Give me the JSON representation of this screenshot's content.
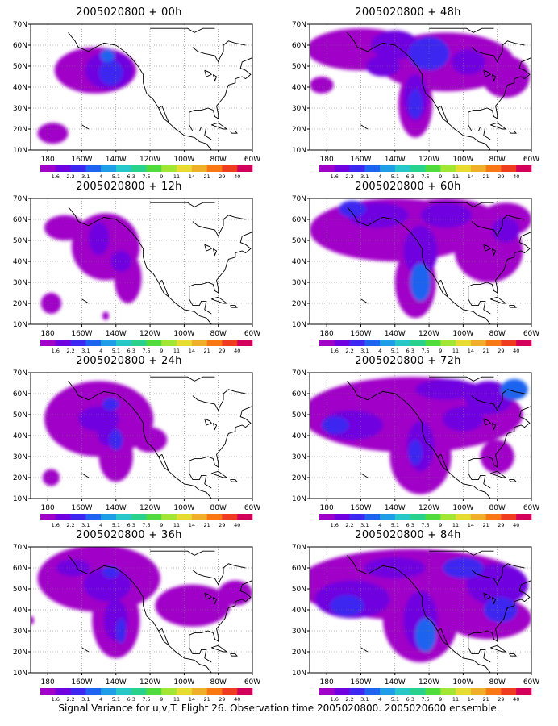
{
  "figure": {
    "caption": "Signal Variance for u,v,T. Flight 26. Observation time 2005020800. 2005020600 ensemble."
  },
  "axes": {
    "lat_labels": [
      "70N",
      "60N",
      "50N",
      "40N",
      "30N",
      "20N",
      "10N"
    ],
    "lon_labels": [
      "180",
      "160W",
      "140W",
      "120W",
      "100W",
      "80W",
      "60W"
    ]
  },
  "colorbar": {
    "labels": [
      "1.6",
      "2.2",
      "3.1",
      "4",
      "5.1",
      "6.3",
      "7.5",
      "9",
      "11",
      "14",
      "21",
      "29",
      "40"
    ],
    "colors": [
      "#a000c8",
      "#7000e0",
      "#3c28f0",
      "#1e64f0",
      "#1e9ee6",
      "#28c8c8",
      "#28d28c",
      "#50dc3c",
      "#a0e632",
      "#e6dc32",
      "#f0af28",
      "#fa7814",
      "#f03c1e",
      "#d2005a"
    ]
  },
  "panels": [
    {
      "title": "2005020800 + 00h",
      "lead_hours": 0
    },
    {
      "title": "2005020800 + 48h",
      "lead_hours": 48
    },
    {
      "title": "2005020800 + 12h",
      "lead_hours": 12
    },
    {
      "title": "2005020800 + 60h",
      "lead_hours": 60
    },
    {
      "title": "2005020800 + 24h",
      "lead_hours": 24
    },
    {
      "title": "2005020800 + 72h",
      "lead_hours": 72
    },
    {
      "title": "2005020800 + 36h",
      "lead_hours": 36
    },
    {
      "title": "2005020800 + 84h",
      "lead_hours": 84
    }
  ]
}
